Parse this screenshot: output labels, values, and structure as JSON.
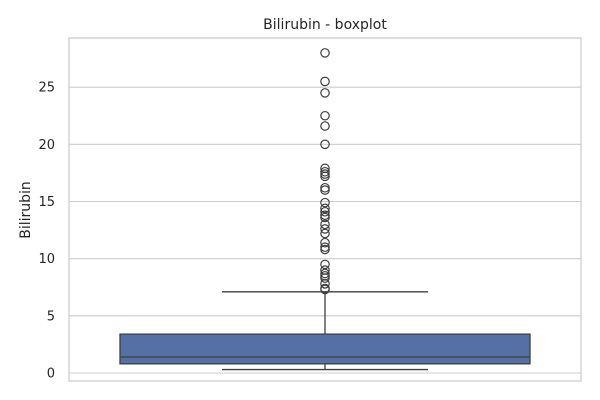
{
  "chart_data": {
    "type": "boxplot",
    "title": "Bilirubin - boxplot",
    "xlabel": "",
    "ylabel": "Bilirubin",
    "ylim": [
      -0.7,
      29.3
    ],
    "yticks": [
      0,
      5,
      10,
      15,
      20,
      25
    ],
    "grid": true,
    "box": {
      "whisker_low": 0.3,
      "q1": 0.8,
      "median": 1.4,
      "q3": 3.4,
      "whisker_high": 7.1
    },
    "outliers": [
      28.0,
      25.5,
      24.5,
      22.5,
      21.6,
      20.0,
      17.9,
      17.6,
      17.4,
      17.2,
      16.2,
      16.0,
      14.9,
      14.4,
      14.1,
      13.8,
      13.6,
      13.0,
      12.6,
      12.2,
      11.4,
      11.0,
      10.8,
      9.5,
      9.0,
      8.7,
      8.5,
      8.3,
      7.8,
      7.4,
      7.3
    ],
    "colors": {
      "box_fill": "#5470a5",
      "line": "#3f3f3f",
      "grid": "#cccccc",
      "axes_edge": "#cccccc"
    }
  }
}
